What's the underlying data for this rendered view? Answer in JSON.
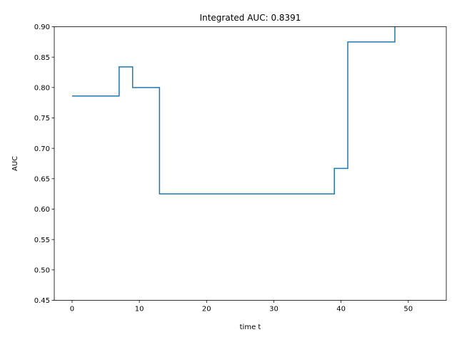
{
  "chart_data": {
    "type": "line",
    "step": "post",
    "title": "Integrated AUC: 0.8391",
    "xlabel": "time t",
    "ylabel": "AUC",
    "xlim": [
      -2.65,
      55.65
    ],
    "ylim": [
      0.45,
      0.9
    ],
    "xticks": [
      0,
      10,
      20,
      30,
      40,
      50
    ],
    "yticks": [
      0.45,
      0.5,
      0.55,
      0.6,
      0.65,
      0.7,
      0.75,
      0.8,
      0.85,
      0.9
    ],
    "xtick_labels": [
      "0",
      "10",
      "20",
      "30",
      "40",
      "50"
    ],
    "ytick_labels": [
      "0.45",
      "0.50",
      "0.55",
      "0.60",
      "0.65",
      "0.70",
      "0.75",
      "0.80",
      "0.85",
      "0.90"
    ],
    "grid": false,
    "colors": {
      "line": "#1f77b4",
      "axes": "#000000"
    },
    "series": [
      {
        "x": [
          0,
          7,
          9,
          13,
          39,
          41,
          48,
          48
        ],
        "y": [
          0.786,
          0.834,
          0.8,
          0.625,
          0.667,
          0.875,
          0.875,
          0.905
        ]
      }
    ]
  }
}
